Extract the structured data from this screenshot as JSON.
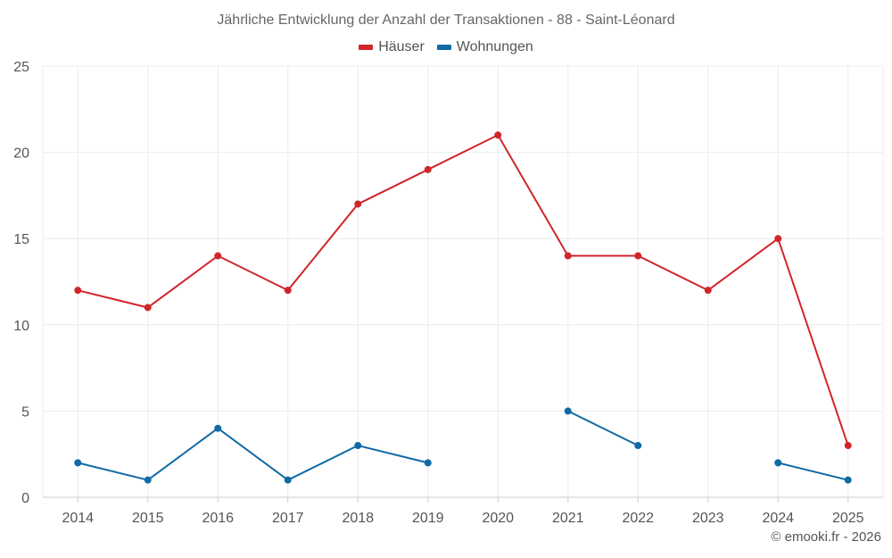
{
  "chart_data": {
    "type": "line",
    "title": "Jährliche Entwicklung der Anzahl der Transaktionen - 88 - Saint-Léonard",
    "xlabel": "",
    "ylabel": "",
    "categories": [
      "2014",
      "2015",
      "2016",
      "2017",
      "2018",
      "2019",
      "2020",
      "2021",
      "2022",
      "2023",
      "2024",
      "2025"
    ],
    "ylim": [
      0,
      25
    ],
    "yticks": [
      0,
      5,
      10,
      15,
      20,
      25
    ],
    "grid": true,
    "legend_position": "top-center",
    "series": [
      {
        "name": "Häuser",
        "color": "#d0262a",
        "values": [
          12,
          11,
          14,
          12,
          17,
          19,
          21,
          14,
          14,
          12,
          15,
          3
        ]
      },
      {
        "name": "Wohnungen",
        "color": "#0f6aa6",
        "values": [
          2,
          1,
          4,
          1,
          3,
          2,
          null,
          5,
          3,
          null,
          2,
          1
        ]
      }
    ]
  },
  "footer": {
    "copyright": "© emooki.fr - 2026"
  }
}
